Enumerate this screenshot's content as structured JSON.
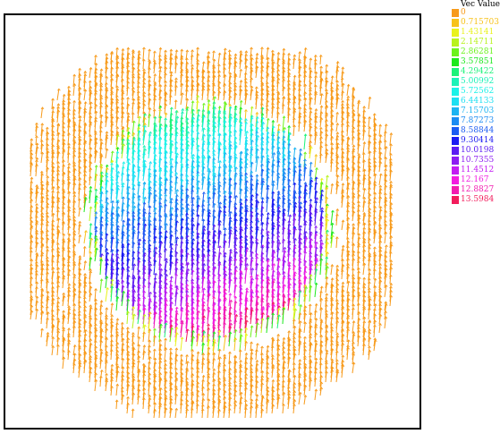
{
  "legend": {
    "title": "Vec Value",
    "entries": [
      {
        "label": "0",
        "color": "#f79a1a"
      },
      {
        "label": "0.715703",
        "color": "#f7c21a"
      },
      {
        "label": "1.43141",
        "color": "#e9f21c"
      },
      {
        "label": "2.14711",
        "color": "#b8f21c"
      },
      {
        "label": "2.86281",
        "color": "#6cf21c"
      },
      {
        "label": "3.57851",
        "color": "#1ce81c"
      },
      {
        "label": "4.29422",
        "color": "#1cf27a"
      },
      {
        "label": "5.00992",
        "color": "#1cf2b8"
      },
      {
        "label": "5.72562",
        "color": "#1cf2e8"
      },
      {
        "label": "6.44133",
        "color": "#1ce0f2"
      },
      {
        "label": "7.15703",
        "color": "#1cb4f2"
      },
      {
        "label": "7.87273",
        "color": "#1c8cf2"
      },
      {
        "label": "8.58844",
        "color": "#1c5cf2"
      },
      {
        "label": "9.30414",
        "color": "#1c1cf2"
      },
      {
        "label": "10.0198",
        "color": "#5c1cf2"
      },
      {
        "label": "10.7355",
        "color": "#8c1cf2"
      },
      {
        "label": "11.4512",
        "color": "#c21cf2"
      },
      {
        "label": "12.167",
        "color": "#f21ce0"
      },
      {
        "label": "12.8827",
        "color": "#f21cb0"
      },
      {
        "label": "13.5984",
        "color": "#f21c5c"
      }
    ]
  }
}
